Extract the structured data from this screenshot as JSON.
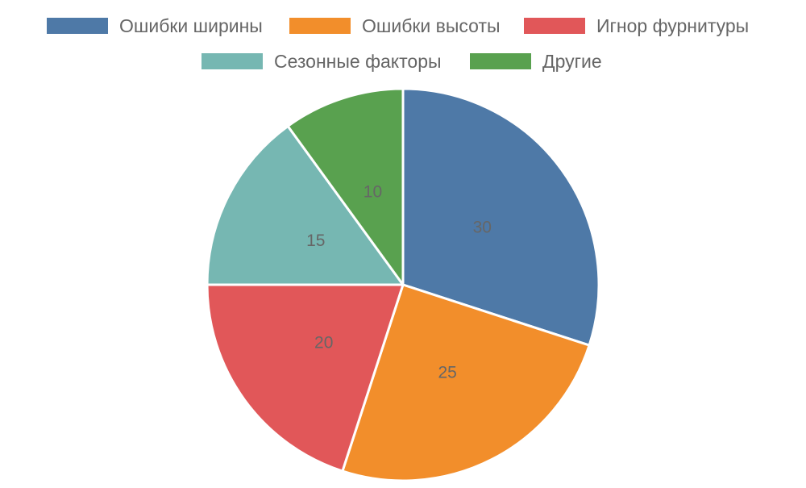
{
  "chart_data": {
    "type": "pie",
    "categories": [
      "Ошибки ширины",
      "Ошибки высоты",
      "Игнор фурнитуры",
      "Сезонные факторы",
      "Другие"
    ],
    "values": [
      30,
      25,
      20,
      15,
      10
    ],
    "colors": [
      "#4e79a7",
      "#f28e2b",
      "#e15759",
      "#76b7b2",
      "#59a14f"
    ],
    "show_value_labels": true,
    "legend_position": "top",
    "title": ""
  }
}
